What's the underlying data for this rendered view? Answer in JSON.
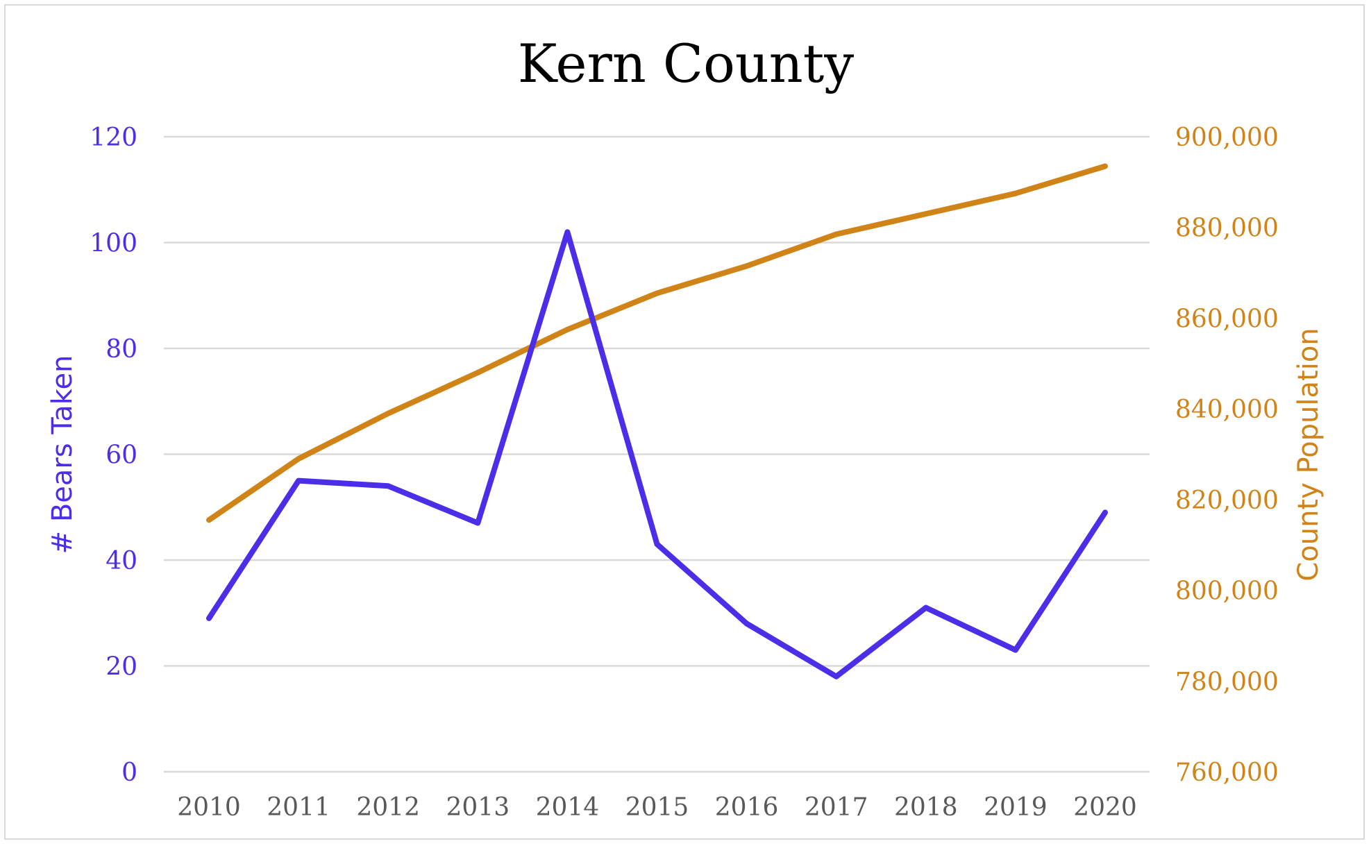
{
  "chart_data": {
    "type": "line",
    "title": "Kern County",
    "x": [
      "2010",
      "2011",
      "2012",
      "2013",
      "2014",
      "2015",
      "2016",
      "2017",
      "2018",
      "2019",
      "2020"
    ],
    "y_left": {
      "label": "# Bears Taken",
      "range": [
        0,
        120
      ],
      "ticks": [
        "0",
        "20",
        "40",
        "60",
        "80",
        "100",
        "120"
      ],
      "color": "#4a2ee8"
    },
    "y_right": {
      "label": "County Population",
      "range": [
        760000,
        900000
      ],
      "ticks": [
        "760,000",
        "780,000",
        "800,000",
        "820,000",
        "840,000",
        "860,000",
        "880,000",
        "900,000"
      ],
      "color": "#d08317"
    },
    "series": [
      {
        "axis": "left",
        "color": "#4a2ee8",
        "values": [
          29,
          55,
          54,
          47,
          102,
          43,
          28,
          18,
          31,
          23,
          49
        ]
      },
      {
        "axis": "right",
        "color": "#d08317",
        "values": [
          815500,
          829000,
          839000,
          848000,
          857500,
          865500,
          871500,
          878500,
          883000,
          887500,
          893500
        ]
      }
    ],
    "grid": true,
    "legend": "none"
  }
}
